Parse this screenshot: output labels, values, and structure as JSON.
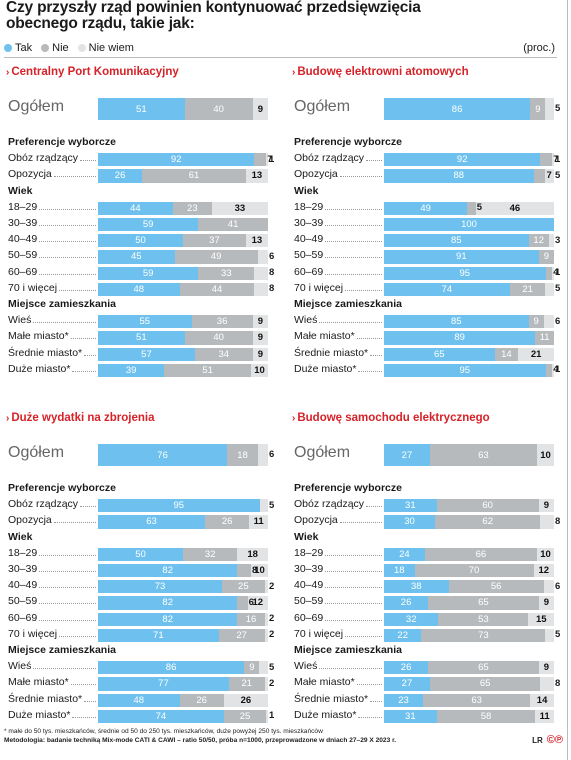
{
  "title": "Czy przyszły rząd powinien kontynuować przedsięwzięcia obecnego rządu, takie jak:",
  "legend": [
    {
      "label": "Tak",
      "color": "#6ec1ee"
    },
    {
      "label": "Nie",
      "color": "#b7babd"
    },
    {
      "label": "Nie wiem",
      "color": "#e1e3e5"
    }
  ],
  "unit": "(proc.)",
  "chart_data": [
    {
      "type": "bar",
      "title": "Centralny Port Komunikacyjny",
      "series_names": [
        "Tak",
        "Nie",
        "Nie wiem"
      ],
      "overall": {
        "label": "Ogółem",
        "values": [
          51,
          40,
          9
        ]
      },
      "groups": [
        {
          "label": "Preferencje wyborcze",
          "rows": [
            {
              "label": "Obóz rządzący",
              "values": [
                92,
                7,
                1
              ]
            },
            {
              "label": "Opozycja",
              "values": [
                26,
                61,
                13
              ]
            }
          ]
        },
        {
          "label": "Wiek",
          "rows": [
            {
              "label": "18–29",
              "values": [
                44,
                23,
                33
              ]
            },
            {
              "label": "30–39",
              "values": [
                59,
                41,
                0
              ]
            },
            {
              "label": "40–49",
              "values": [
                50,
                37,
                13
              ]
            },
            {
              "label": "50–59",
              "values": [
                45,
                49,
                6
              ]
            },
            {
              "label": "60–69",
              "values": [
                59,
                33,
                8
              ]
            },
            {
              "label": "70 i więcej",
              "values": [
                48,
                44,
                8
              ]
            }
          ]
        },
        {
          "label": "Miejsce zamieszkania",
          "rows": [
            {
              "label": "Wieś",
              "values": [
                55,
                36,
                9
              ]
            },
            {
              "label": "Małe miasto*",
              "values": [
                51,
                40,
                9
              ]
            },
            {
              "label": "Średnie miasto*",
              "values": [
                57,
                34,
                9
              ]
            },
            {
              "label": "Duże miasto*",
              "values": [
                39,
                51,
                10
              ]
            }
          ]
        }
      ]
    },
    {
      "type": "bar",
      "title": "Budowę elektrowni atomowych",
      "series_names": [
        "Tak",
        "Nie",
        "Nie wiem"
      ],
      "overall": {
        "label": "Ogółem",
        "values": [
          86,
          9,
          5
        ]
      },
      "groups": [
        {
          "label": "Preferencje wyborcze",
          "rows": [
            {
              "label": "Obóz rządzący",
              "values": [
                92,
                7,
                1
              ]
            },
            {
              "label": "Opozycja",
              "values": [
                88,
                7,
                5
              ]
            }
          ]
        },
        {
          "label": "Wiek",
          "rows": [
            {
              "label": "18–29",
              "values": [
                49,
                5,
                46
              ]
            },
            {
              "label": "30–39",
              "values": [
                100,
                0,
                0
              ]
            },
            {
              "label": "40–49",
              "values": [
                85,
                12,
                3
              ]
            },
            {
              "label": "50–59",
              "values": [
                91,
                9,
                0
              ]
            },
            {
              "label": "60–69",
              "values": [
                95,
                4,
                1
              ]
            },
            {
              "label": "70 i więcej",
              "values": [
                74,
                21,
                5
              ]
            }
          ]
        },
        {
          "label": "Miejsce zamieszkania",
          "rows": [
            {
              "label": "Wieś",
              "values": [
                85,
                9,
                6
              ]
            },
            {
              "label": "Małe miasto*",
              "values": [
                89,
                11,
                0
              ]
            },
            {
              "label": "Średnie miasto*",
              "values": [
                65,
                14,
                21
              ]
            },
            {
              "label": "Duże miasto*",
              "values": [
                95,
                4,
                1
              ]
            }
          ]
        }
      ]
    },
    {
      "type": "bar",
      "title": "Duże wydatki na zbrojenia",
      "series_names": [
        "Tak",
        "Nie",
        "Nie wiem"
      ],
      "overall": {
        "label": "Ogółem",
        "values": [
          76,
          18,
          6
        ]
      },
      "groups": [
        {
          "label": "Preferencje wyborcze",
          "rows": [
            {
              "label": "Obóz rządzący",
              "values": [
                95,
                0,
                5
              ]
            },
            {
              "label": "Opozycja",
              "values": [
                63,
                26,
                11
              ]
            }
          ]
        },
        {
          "label": "Wiek",
          "rows": [
            {
              "label": "18–29",
              "values": [
                50,
                32,
                18
              ]
            },
            {
              "label": "30–39",
              "values": [
                82,
                8,
                10
              ]
            },
            {
              "label": "40–49",
              "values": [
                73,
                25,
                2
              ]
            },
            {
              "label": "50–59",
              "values": [
                82,
                6,
                12
              ]
            },
            {
              "label": "60–69",
              "values": [
                82,
                16,
                2
              ]
            },
            {
              "label": "70 i więcej",
              "values": [
                71,
                27,
                2
              ]
            }
          ]
        },
        {
          "label": "Miejsce zamieszkania",
          "rows": [
            {
              "label": "Wieś",
              "values": [
                86,
                9,
                5
              ]
            },
            {
              "label": "Małe miasto*",
              "values": [
                77,
                21,
                2
              ]
            },
            {
              "label": "Średnie miasto*",
              "values": [
                48,
                26,
                26
              ]
            },
            {
              "label": "Duże miasto*",
              "values": [
                74,
                25,
                1
              ]
            }
          ]
        }
      ]
    },
    {
      "type": "bar",
      "title": "Budowę samochodu elektrycznego",
      "series_names": [
        "Tak",
        "Nie",
        "Nie wiem"
      ],
      "overall": {
        "label": "Ogółem",
        "values": [
          27,
          63,
          10
        ]
      },
      "groups": [
        {
          "label": "Preferencje wyborcze",
          "rows": [
            {
              "label": "Obóz rządzący",
              "values": [
                31,
                60,
                9
              ]
            },
            {
              "label": "Opozycja",
              "values": [
                30,
                62,
                8
              ]
            }
          ]
        },
        {
          "label": "Wiek",
          "rows": [
            {
              "label": "18–29",
              "values": [
                24,
                66,
                10
              ]
            },
            {
              "label": "30–39",
              "values": [
                18,
                70,
                12
              ]
            },
            {
              "label": "40–49",
              "values": [
                38,
                56,
                6
              ]
            },
            {
              "label": "50–59",
              "values": [
                26,
                65,
                9
              ]
            },
            {
              "label": "60–69",
              "values": [
                32,
                53,
                15
              ]
            },
            {
              "label": "70 i więcej",
              "values": [
                22,
                73,
                5
              ]
            }
          ]
        },
        {
          "label": "Miejsce zamieszkania",
          "rows": [
            {
              "label": "Wieś",
              "values": [
                26,
                65,
                9
              ]
            },
            {
              "label": "Małe miasto*",
              "values": [
                27,
                65,
                8
              ]
            },
            {
              "label": "Średnie miasto*",
              "values": [
                23,
                63,
                14
              ]
            },
            {
              "label": "Duże miasto*",
              "values": [
                31,
                58,
                11
              ]
            }
          ]
        }
      ]
    }
  ],
  "footer": {
    "note": "* małe do 50 tys. mieszkańców, średnie od 50 do 250 tys. mieszkańców, duże powyżej 250 tys. mieszkańców",
    "method": "Metodologia: badanie techniką Mix-mode CATI & CAWI – ratio 50/50, próba n=1000, przeprowadzone w dniach 27–29 X 2023 r."
  },
  "logo": "LR"
}
